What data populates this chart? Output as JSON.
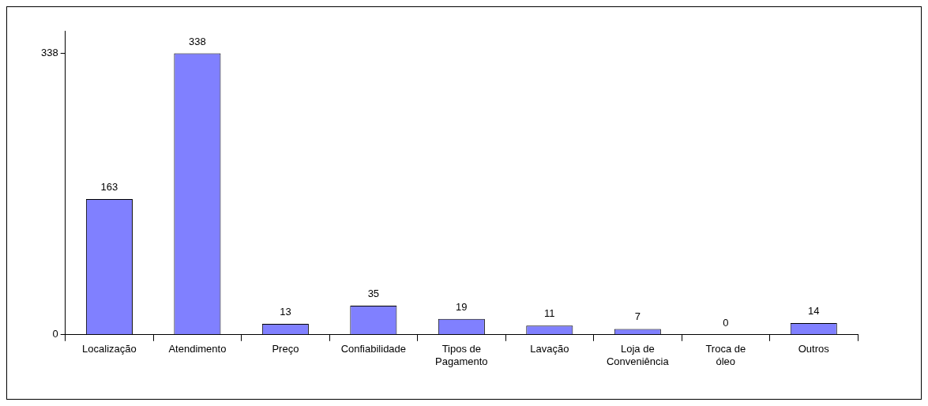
{
  "chart_data": {
    "type": "bar",
    "categories": [
      "Localização",
      "Atendimento",
      "Preço",
      "Confiabilidade",
      "Tipos de Pagamento",
      "Lavação",
      "Loja de Conveniência",
      "Troca de óleo",
      "Outros"
    ],
    "values": [
      163,
      338,
      13,
      35,
      19,
      11,
      7,
      0,
      14
    ],
    "color": "#8080ff",
    "ylim": [
      0,
      365
    ],
    "yticks": [
      0,
      338
    ],
    "grid": false,
    "legend": false,
    "data_labels": true
  }
}
